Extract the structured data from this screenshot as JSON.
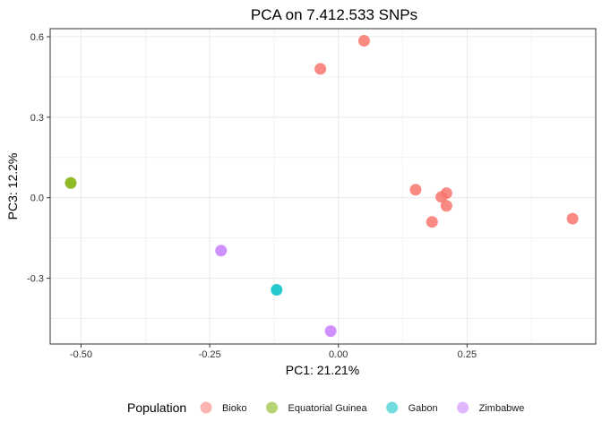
{
  "chart_data": {
    "type": "scatter",
    "title": "PCA on 7.412.533 SNPs",
    "xlabel": "PC1: 21.21%",
    "ylabel": "PC3: 12.2%",
    "xlim": [
      -0.56,
      0.5
    ],
    "ylim": [
      -0.545,
      0.63
    ],
    "x_ticks": [
      -0.5,
      -0.25,
      0.0,
      0.25
    ],
    "x_tick_labels": [
      "-0.50",
      "-0.25",
      "0.00",
      "0.25"
    ],
    "y_ticks": [
      -0.3,
      0.0,
      0.3,
      0.6
    ],
    "y_tick_labels": [
      "-0.3",
      "0.0",
      "0.3",
      "0.6"
    ],
    "grid": true,
    "legend_position": "bottom",
    "legend_title": "Population",
    "series": [
      {
        "name": "Bioko",
        "color": "#F8766D",
        "points": [
          {
            "x": 0.05,
            "y": 0.585
          },
          {
            "x": -0.035,
            "y": 0.48
          },
          {
            "x": 0.15,
            "y": 0.03
          },
          {
            "x": 0.2,
            "y": 0.003
          },
          {
            "x": 0.21,
            "y": 0.017
          },
          {
            "x": 0.21,
            "y": -0.03
          },
          {
            "x": 0.182,
            "y": -0.09
          },
          {
            "x": 0.455,
            "y": -0.078
          }
        ]
      },
      {
        "name": "Equatorial Guinea",
        "color": "#7CAE00",
        "points": [
          {
            "x": -0.52,
            "y": 0.055
          }
        ]
      },
      {
        "name": "Gabon",
        "color": "#00BFC4",
        "points": [
          {
            "x": -0.12,
            "y": -0.343
          }
        ]
      },
      {
        "name": "Zimbabwe",
        "color": "#C77CFF",
        "points": [
          {
            "x": -0.228,
            "y": -0.197
          },
          {
            "x": -0.015,
            "y": -0.497
          }
        ]
      }
    ]
  }
}
